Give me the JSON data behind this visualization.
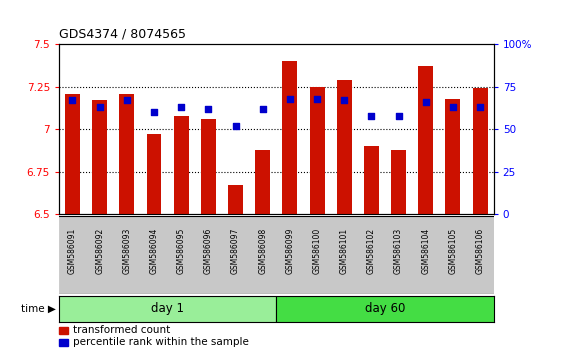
{
  "title": "GDS4374 / 8074565",
  "samples": [
    "GSM586091",
    "GSM586092",
    "GSM586093",
    "GSM586094",
    "GSM586095",
    "GSM586096",
    "GSM586097",
    "GSM586098",
    "GSM586099",
    "GSM586100",
    "GSM586101",
    "GSM586102",
    "GSM586103",
    "GSM586104",
    "GSM586105",
    "GSM586106"
  ],
  "bar_values": [
    7.21,
    7.17,
    7.21,
    6.97,
    7.08,
    7.06,
    6.67,
    6.88,
    7.4,
    7.25,
    7.29,
    6.9,
    6.88,
    7.37,
    7.18,
    7.24
  ],
  "blue_values": [
    7.17,
    7.13,
    7.17,
    7.1,
    7.13,
    7.12,
    7.02,
    7.12,
    7.18,
    7.18,
    7.17,
    7.08,
    7.08,
    7.16,
    7.13,
    7.13
  ],
  "groups": [
    {
      "label": "day 1",
      "start": 0,
      "end": 8,
      "color": "#99EE99"
    },
    {
      "label": "day 60",
      "start": 8,
      "end": 16,
      "color": "#44DD44"
    }
  ],
  "ylim_left": [
    6.5,
    7.5
  ],
  "ylim_right": [
    0,
    100
  ],
  "yticks_left": [
    6.5,
    6.75,
    7.0,
    7.25,
    7.5
  ],
  "ytick_labels_left": [
    "6.5",
    "6.75",
    "7",
    "7.25",
    "7.5"
  ],
  "yticks_right": [
    0,
    25,
    50,
    75,
    100
  ],
  "ytick_labels_right": [
    "0",
    "25",
    "50",
    "75",
    "100%"
  ],
  "bar_color": "#CC1100",
  "blue_color": "#0000CC",
  "bar_width": 0.55,
  "grid_lines": [
    6.75,
    7.0,
    7.25
  ],
  "legend_items": [
    {
      "color": "#CC1100",
      "label": "transformed count"
    },
    {
      "color": "#0000CC",
      "label": "percentile rank within the sample"
    }
  ],
  "baseline": 6.5,
  "n_samples": 16,
  "cell_color": "#C8C8C8",
  "cell_edge_color": "#ffffff"
}
